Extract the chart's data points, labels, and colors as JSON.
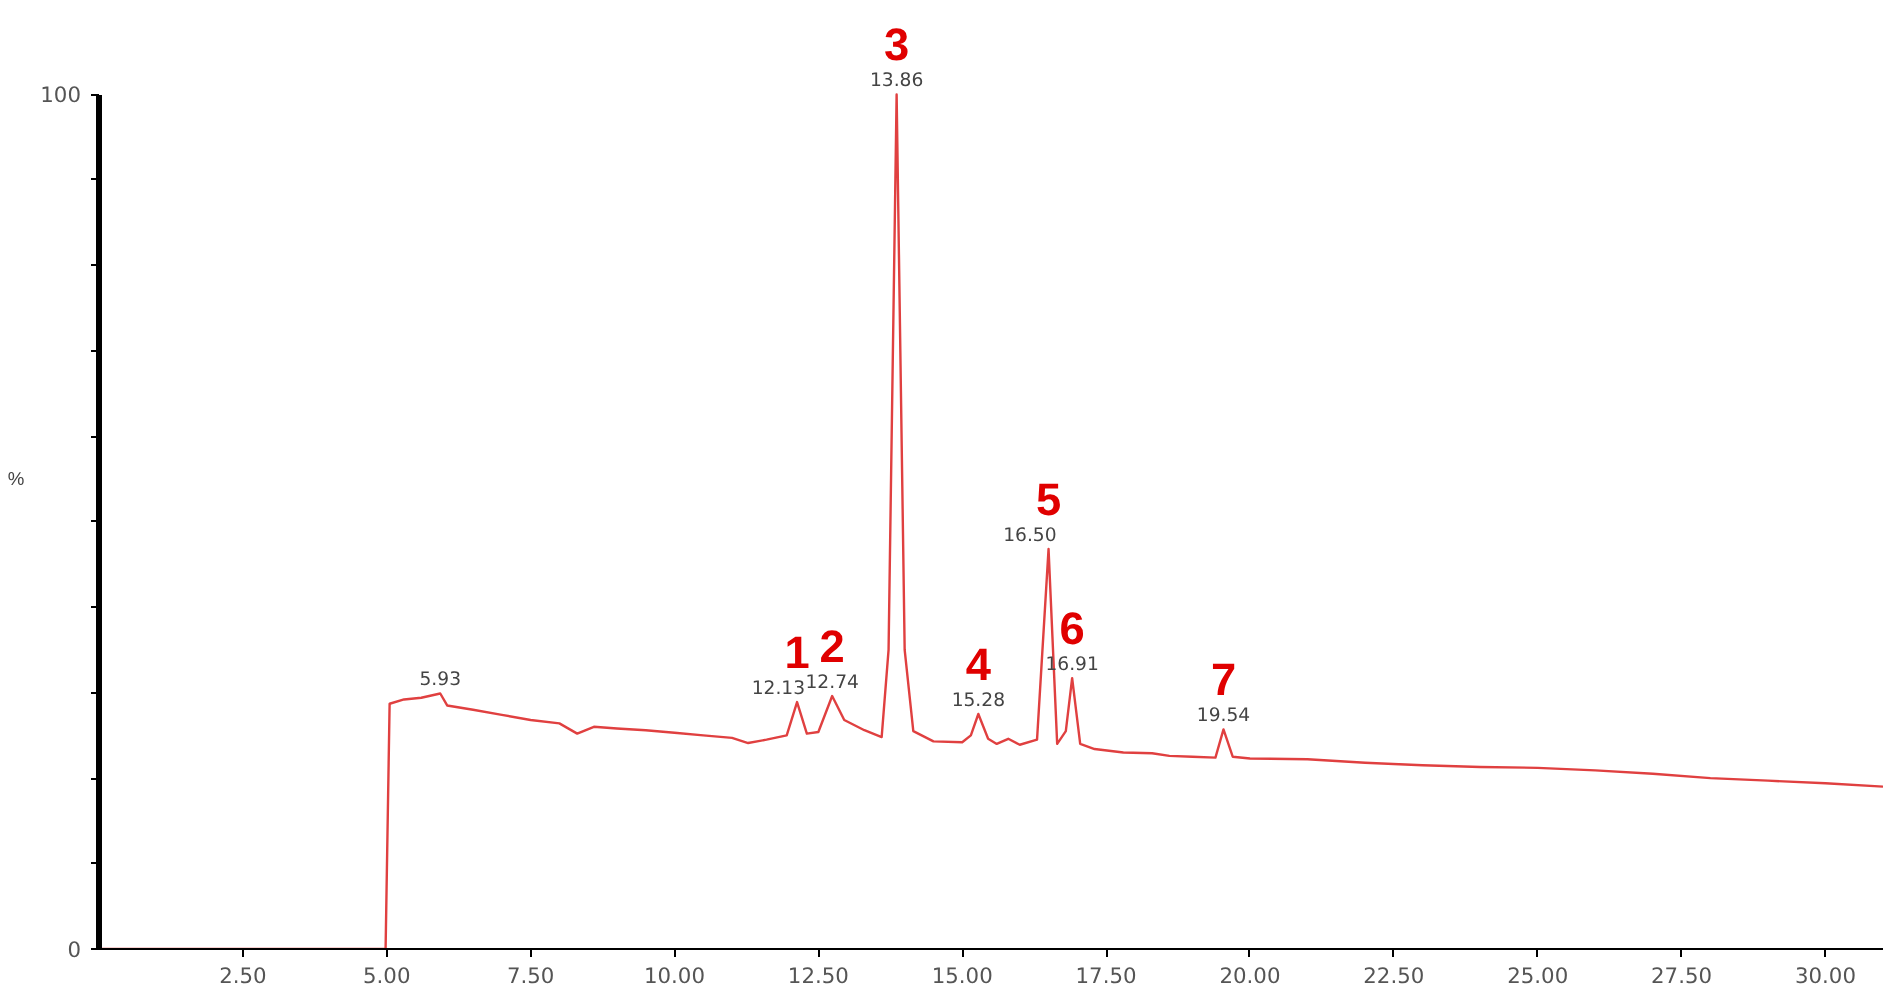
{
  "chart_data": {
    "type": "line",
    "ylabel": "%",
    "x": [
      0,
      4.98,
      5.05,
      5.3,
      5.6,
      5.93,
      6.05,
      6.5,
      7.0,
      7.5,
      8.0,
      8.31,
      8.6,
      9.0,
      9.5,
      10.0,
      10.5,
      11.0,
      11.28,
      11.6,
      11.95,
      12.13,
      12.3,
      12.5,
      12.74,
      12.95,
      13.3,
      13.6,
      13.72,
      13.86,
      14.0,
      14.15,
      14.5,
      15.0,
      15.15,
      15.28,
      15.45,
      15.6,
      15.8,
      16.0,
      16.3,
      16.5,
      16.65,
      16.8,
      16.91,
      17.05,
      17.3,
      17.8,
      18.3,
      18.6,
      19.0,
      19.4,
      19.54,
      19.7,
      20.0,
      21.0,
      21.5,
      22.0,
      23.0,
      24.0,
      25.0,
      26.0,
      27.0,
      28.0,
      29.0,
      30.0,
      31.0
    ],
    "series": [
      {
        "color": "#e04040",
        "values": [
          0,
          0,
          28.7,
          29.2,
          29.4,
          29.9,
          28.5,
          28.0,
          27.4,
          26.8,
          26.4,
          25.2,
          26.0,
          25.8,
          25.6,
          25.3,
          25.0,
          24.7,
          24.1,
          24.5,
          25.0,
          28.9,
          25.2,
          25.4,
          29.6,
          26.8,
          25.6,
          24.8,
          35,
          100,
          35,
          25.5,
          24.3,
          24.2,
          25.0,
          27.5,
          24.6,
          24.0,
          24.6,
          23.9,
          24.5,
          46.8,
          24.0,
          25.5,
          31.7,
          24.0,
          23.4,
          23.0,
          22.9,
          22.6,
          22.5,
          22.4,
          25.7,
          22.5,
          22.3,
          22.2,
          22.0,
          21.8,
          21.5,
          21.3,
          21.2,
          20.9,
          20.5,
          20.0,
          19.7,
          19.4,
          19.0
        ]
      }
    ],
    "xlim": [
      0,
      31
    ],
    "ylim": [
      0,
      100
    ],
    "xticks": [
      {
        "value": 2.5,
        "label": "2.50"
      },
      {
        "value": 5,
        "label": "5.00"
      },
      {
        "value": 7.5,
        "label": "7.50"
      },
      {
        "value": 10,
        "label": "10.00"
      },
      {
        "value": 12.5,
        "label": "12.50"
      },
      {
        "value": 15,
        "label": "15.00"
      },
      {
        "value": 17.5,
        "label": "17.50"
      },
      {
        "value": 20,
        "label": "20.00"
      },
      {
        "value": 22.5,
        "label": "22.50"
      },
      {
        "value": 25,
        "label": "25.00"
      },
      {
        "value": 27.5,
        "label": "27.50"
      },
      {
        "value": 30,
        "label": "30.00"
      }
    ],
    "yticks": [
      0,
      {
        "value": 10,
        "label": null
      },
      {
        "value": 20,
        "label": null
      },
      {
        "value": 30,
        "label": null
      },
      {
        "value": 40,
        "label": null
      },
      {
        "value": 50,
        "label": null
      },
      {
        "value": 60,
        "label": null
      },
      {
        "value": 70,
        "label": null
      },
      {
        "value": 80,
        "label": null
      },
      {
        "value": 90,
        "label": null
      },
      100
    ],
    "grid": false,
    "marker": "none",
    "line_style": "solid",
    "annotations": [
      {
        "text": "5.93",
        "x": 5.93,
        "y": 29.9
      },
      {
        "text": "12.13",
        "x": 12.13,
        "y": 28.9
      },
      {
        "text": "1",
        "x": 12.13,
        "y": 28.9
      },
      {
        "text": "12.74",
        "x": 12.74,
        "y": 29.6
      },
      {
        "text": "2",
        "x": 12.74,
        "y": 29.6
      },
      {
        "text": "13.86",
        "x": 13.86,
        "y": 100
      },
      {
        "text": "3",
        "x": 13.86,
        "y": 100
      },
      {
        "text": "15.28",
        "x": 15.28,
        "y": 27.5
      },
      {
        "text": "4",
        "x": 15.28,
        "y": 27.5
      },
      {
        "text": "16.50",
        "x": 16.5,
        "y": 46.8
      },
      {
        "text": "5",
        "x": 16.5,
        "y": 46.8
      },
      {
        "text": "16.91",
        "x": 16.91,
        "y": 31.7
      },
      {
        "text": "6",
        "x": 16.91,
        "y": 31.7
      },
      {
        "text": "19.54",
        "x": 19.54,
        "y": 25.7
      },
      {
        "text": "7",
        "x": 19.54,
        "y": 25.7
      }
    ]
  }
}
